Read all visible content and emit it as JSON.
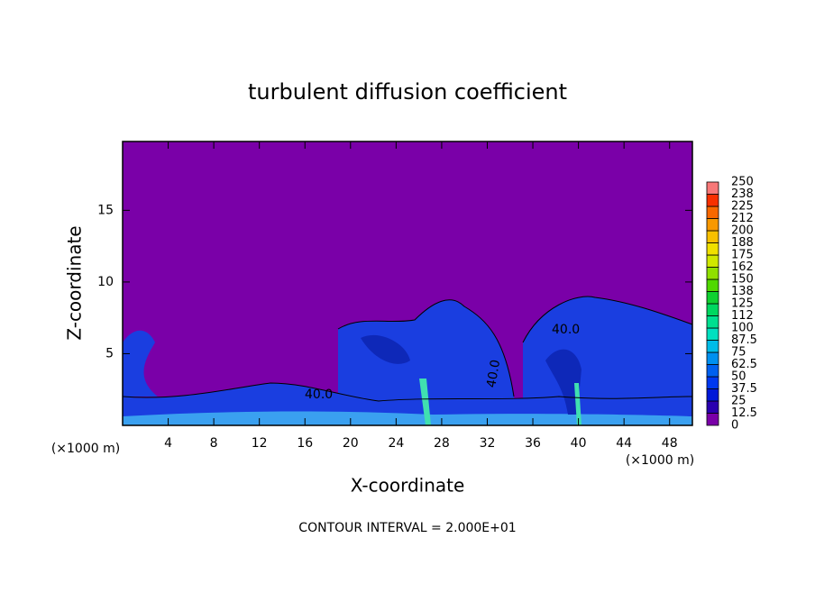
{
  "chart_data": {
    "type": "contour",
    "title": "turbulent diffusion coefficient",
    "x_label": "X-coordinate",
    "y_label": "Z-coordinate",
    "x_unit": "(×1000 m)",
    "footnote": "CONTOUR INTERVAL = 2.000E+01",
    "contour_labels": [
      "40.0",
      "40.0",
      "40.0"
    ],
    "xlim": [
      0,
      50
    ],
    "xticks": [
      4,
      8,
      12,
      16,
      20,
      24,
      28,
      32,
      36,
      40,
      44,
      48
    ],
    "ylim": [
      0,
      19.8
    ],
    "yticks": [
      5,
      10,
      15
    ],
    "colorbar": {
      "levels": [
        0,
        12.5,
        25,
        37.5,
        50,
        62.5,
        75,
        87.5,
        100,
        112,
        125,
        138,
        150,
        162,
        175,
        188,
        200,
        212,
        225,
        238,
        250
      ],
      "colors": [
        "#7a00a8",
        "#2a00b0",
        "#0018d8",
        "#0038f0",
        "#0060f0",
        "#0090f0",
        "#00bce8",
        "#00e0c0",
        "#00e090",
        "#00d860",
        "#10d030",
        "#50d800",
        "#90e000",
        "#d0e800",
        "#f0e000",
        "#f8c000",
        "#f89800",
        "#f86800",
        "#f83000",
        "#f87878"
      ]
    }
  }
}
